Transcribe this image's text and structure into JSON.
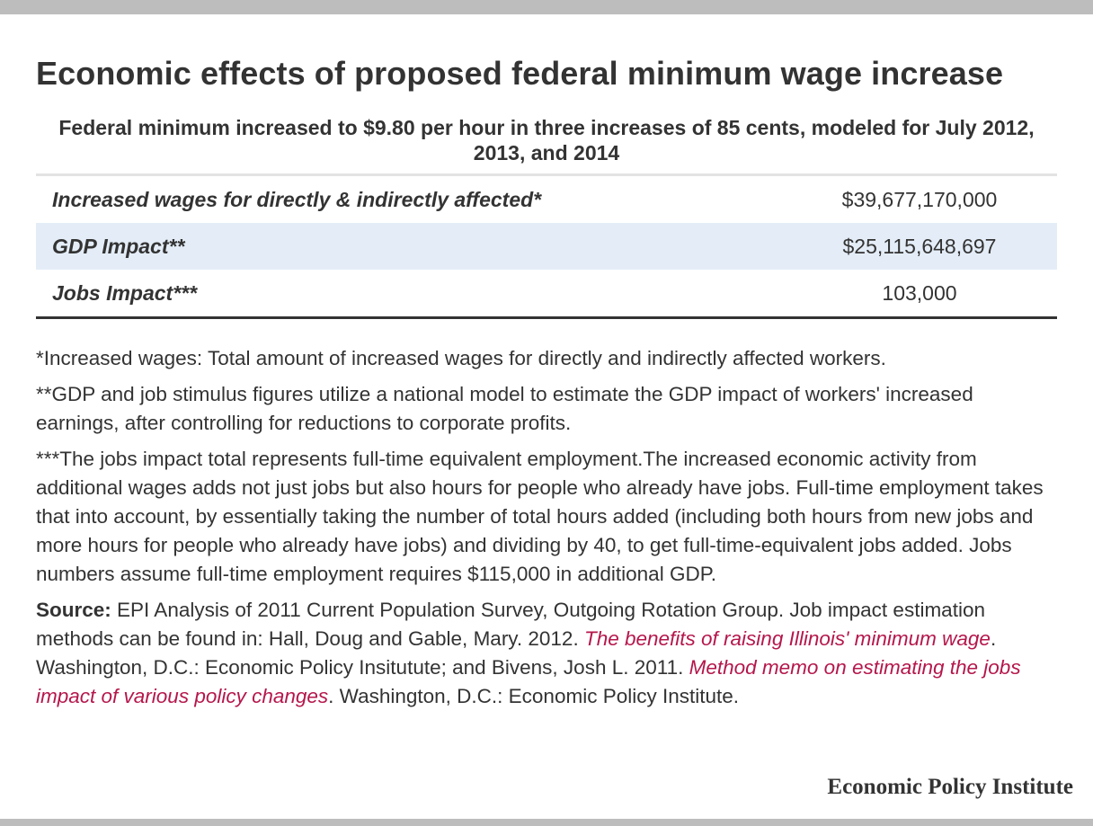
{
  "title": "Economic effects of proposed federal minimum wage increase",
  "subtitle": "Federal minimum increased to $9.80 per hour in three increases of 85 cents, modeled for July 2012, 2013, and 2014",
  "table": {
    "rows": [
      {
        "label": "Increased wages for directly & indirectly affected*",
        "value": "$39,677,170,000"
      },
      {
        "label": "GDP Impact**",
        "value": "$25,115,648,697"
      },
      {
        "label": "Jobs Impact***",
        "value": "103,000"
      }
    ]
  },
  "notes": {
    "note1": "*Increased wages: Total amount of increased wages for directly and indirectly affected workers.",
    "note2": "**GDP and job stimulus figures utilize a national model to estimate the GDP impact of workers' increased earnings, after controlling for reductions to corporate profits.",
    "note3": "***The jobs impact total represents full-time equivalent employment.The increased economic activity from additional wages adds not just jobs but also hours for people who already have jobs. Full-time employment takes that into account, by essentially taking the number of total hours added (including both hours from new jobs and more hours for people who already have jobs) and dividing by 40, to get full-time-equivalent jobs added. Jobs numbers assume full-time employment requires $115,000 in additional GDP.",
    "source_label": "Source:",
    "source_text1": " EPI Analysis of 2011 Current Population Survey, Outgoing Rotation Group. Job impact estimation methods can be found in: Hall, Doug and Gable, Mary. 2012. ",
    "source_link1": "The benefits of raising Illinois' minimum wage",
    "source_text2": ". Washington, D.C.: Economic Policy Insitutute; and Bivens, Josh L. 2011. ",
    "source_link2": "Method memo on estimating the jobs impact of various policy changes",
    "source_text3": ". Washington, D.C.: Economic Policy Institute."
  },
  "logo": "Economic Policy Institute",
  "colors": {
    "link": "#b5174b",
    "row_highlight": "#e4edf7",
    "frame_bar": "#bdbdbd",
    "text": "#333333"
  }
}
